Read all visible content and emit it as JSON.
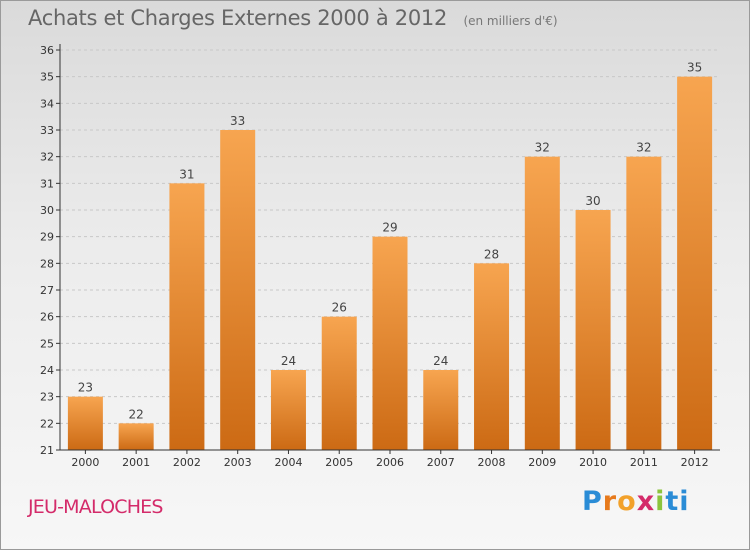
{
  "header": {
    "title": "Achats et Charges Externes 2000 à 2012",
    "subtitle": "(en milliers d'€)"
  },
  "commune": "JEU-MALOCHES",
  "logo": {
    "text": "Proxiti",
    "letters": [
      "P",
      "r",
      "o",
      "x",
      "i",
      "ti"
    ]
  },
  "colors": {
    "bar_light": "#f7a550",
    "bar_dark": "#cc6a14",
    "grid": "#c8c8c8",
    "axis": "#333333"
  },
  "chart_data": {
    "type": "bar",
    "title": "Achats et Charges Externes 2000 à 2012",
    "subtitle": "(en milliers d'€)",
    "xlabel": "",
    "ylabel": "",
    "categories": [
      "2000",
      "2001",
      "2002",
      "2003",
      "2004",
      "2005",
      "2006",
      "2007",
      "2008",
      "2009",
      "2010",
      "2011",
      "2012"
    ],
    "values": [
      23,
      22,
      31,
      33,
      24,
      26,
      29,
      24,
      28,
      32,
      30,
      32,
      35
    ],
    "ylim": [
      21,
      36
    ],
    "yticks": [
      21,
      22,
      23,
      24,
      25,
      26,
      27,
      28,
      29,
      30,
      31,
      32,
      33,
      34,
      35,
      36
    ],
    "grid": true,
    "grid_style": "dashed horizontal",
    "data_labels": true
  }
}
